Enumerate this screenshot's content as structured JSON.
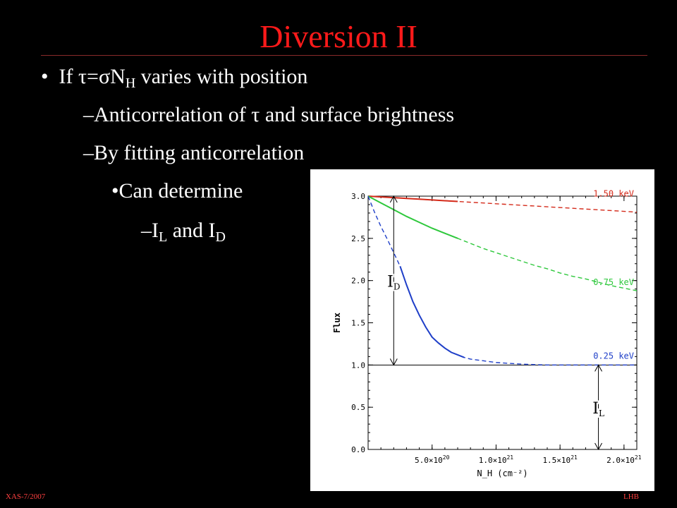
{
  "slide": {
    "title": "Diversion II",
    "bullets": [
      {
        "marker": "•",
        "parts": [
          "If τ=σN",
          "H",
          " varies with position"
        ]
      },
      {
        "marker": "–",
        "text": "Anticorrelation  of τ and surface brightness"
      },
      {
        "marker": "–",
        "text": "By fitting anticorrelation"
      },
      {
        "marker": "•",
        "text": "Can determine"
      },
      {
        "marker": "–",
        "parts": [
          "I",
          "L",
          " and I",
          "D"
        ]
      }
    ],
    "footer_left": "XAS-7/2007",
    "footer_right": "LHB"
  },
  "chart_data": {
    "type": "line",
    "xlabel": "N_H (cm⁻²)",
    "ylabel": "Flux",
    "xlim": [
      0,
      2.1e+21
    ],
    "ylim": [
      0,
      3.0
    ],
    "x_ticks": [
      {
        "value": 5e+20,
        "label": "5.0×10",
        "exp": "20"
      },
      {
        "value": 1e+21,
        "label": "1.0×10",
        "exp": "21"
      },
      {
        "value": 1.5e+21,
        "label": "1.5×10",
        "exp": "21"
      },
      {
        "value": 2e+21,
        "label": "2.0×10",
        "exp": "21"
      }
    ],
    "y_ticks": [
      0.0,
      0.5,
      1.0,
      1.5,
      2.0,
      2.5,
      3.0
    ],
    "y_tick_labels": [
      "0.0",
      "0.5",
      "1.0",
      "1.5",
      "2.0",
      "2.5",
      "3.0"
    ],
    "series": [
      {
        "name": "1.50 keV",
        "color": "#d42a1a",
        "x": [
          0,
          1e+20,
          2e+20,
          3e+20,
          4e+20,
          5e+20,
          6e+20,
          7e+20,
          8e+20,
          9e+20,
          1e+21,
          1.1e+21,
          1.2e+21,
          1.3e+21,
          1.4e+21,
          1.5e+21,
          1.6e+21,
          1.7e+21,
          1.8e+21,
          1.9e+21,
          2e+21,
          2.1e+21
        ],
        "y": [
          3.0,
          2.991,
          2.982,
          2.973,
          2.964,
          2.955,
          2.946,
          2.937,
          2.928,
          2.919,
          2.91,
          2.901,
          2.892,
          2.883,
          2.874,
          2.865,
          2.856,
          2.847,
          2.838,
          2.829,
          2.82,
          2.81
        ],
        "solid_max_x": 7.5e+20
      },
      {
        "name": "0.75 keV",
        "color": "#2ec83c",
        "x": [
          0,
          1e+20,
          2e+20,
          3e+20,
          4e+20,
          5e+20,
          6e+20,
          7e+20,
          8e+20,
          9e+20,
          1e+21,
          1.1e+21,
          1.2e+21,
          1.3e+21,
          1.4e+21,
          1.5e+21,
          1.6e+21,
          1.7e+21,
          1.8e+21,
          1.9e+21,
          2e+21,
          2.1e+21
        ],
        "y": [
          3.0,
          2.92,
          2.84,
          2.76,
          2.69,
          2.62,
          2.56,
          2.5,
          2.44,
          2.38,
          2.33,
          2.28,
          2.23,
          2.18,
          2.14,
          2.09,
          2.05,
          2.02,
          1.98,
          1.94,
          1.91,
          1.88
        ],
        "solid_max_x": 7.5e+20
      },
      {
        "name": "0.25 keV",
        "color": "#1f3fc8",
        "x": [
          0,
          5e+19,
          1e+20,
          1.5e+20,
          2e+20,
          2.5e+20,
          3e+20,
          3.5e+20,
          4e+20,
          4.5e+20,
          5e+20,
          5.5e+20,
          6e+20,
          6.5e+20,
          7e+20,
          7.5e+20,
          8e+20,
          9e+20,
          1e+21,
          1.1e+21,
          1.2e+21,
          1.3e+21,
          1.4e+21,
          1.5e+21,
          1.6e+21,
          1.7e+21,
          1.8e+21,
          1.9e+21,
          2e+21,
          2.1e+21
        ],
        "y": [
          3.0,
          2.81,
          2.64,
          2.49,
          2.33,
          2.17,
          1.95,
          1.75,
          1.59,
          1.45,
          1.33,
          1.26,
          1.2,
          1.15,
          1.12,
          1.09,
          1.07,
          1.05,
          1.03,
          1.02,
          1.01,
          1.005,
          1.0,
          1.0,
          1.0,
          1.0,
          1.0,
          1.0,
          1.0,
          1.0
        ],
        "solid_min_x": 2.4e+20,
        "solid_max_x": 7.5e+20
      }
    ],
    "reference_lines": [
      {
        "y": 1.0,
        "color": "#000000"
      }
    ],
    "annotations": [
      {
        "text": "I",
        "sub": "D",
        "x": 2e+20,
        "y": 2.0
      },
      {
        "text": "I",
        "sub": "L",
        "x": 1.8e+21,
        "y": 0.5
      }
    ],
    "arrows": [
      {
        "x": 2e+20,
        "y_from": 3.0,
        "y_to": 1.0
      },
      {
        "x": 1.8e+21,
        "y_from": 1.0,
        "y_to": 0.0
      }
    ],
    "grid": false,
    "legend": "inline"
  }
}
